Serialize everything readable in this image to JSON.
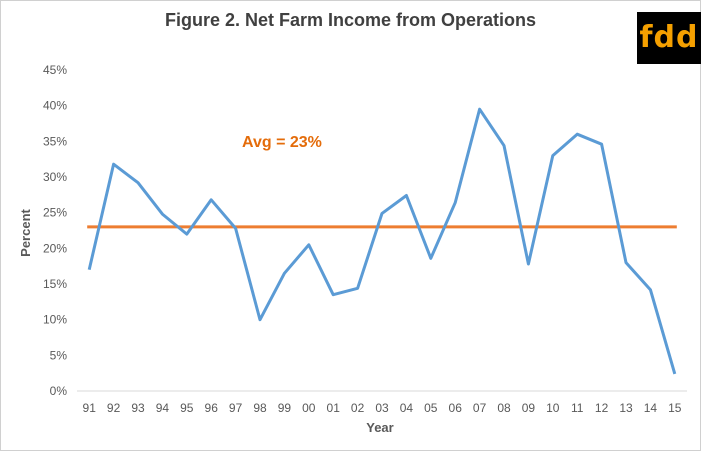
{
  "chart_data": {
    "type": "line",
    "title": "Figure 2. Net Farm Income from Operations",
    "xlabel": "Year",
    "ylabel": "Percent",
    "categories": [
      "91",
      "92",
      "93",
      "94",
      "95",
      "96",
      "97",
      "98",
      "99",
      "00",
      "01",
      "02",
      "03",
      "04",
      "05",
      "06",
      "07",
      "08",
      "09",
      "10",
      "11",
      "12",
      "13",
      "14",
      "15"
    ],
    "series": [
      {
        "values": [
          17,
          31.8,
          29.2,
          24.8,
          22,
          26.8,
          22.8,
          10,
          16.5,
          20.5,
          13.5,
          14.4,
          24.9,
          27.4,
          18.6,
          26.4,
          39.5,
          34.4,
          17.8,
          33,
          36,
          34.6,
          18,
          14.2,
          2.4
        ],
        "color": "#5b9bd5"
      }
    ],
    "reference_line": {
      "value": 23,
      "label": "Avg = 23%",
      "color": "#ed7d31"
    },
    "ylim": [
      0,
      45
    ],
    "yticks": [
      "0%",
      "5%",
      "10%",
      "15%",
      "20%",
      "25%",
      "30%",
      "35%",
      "40%",
      "45%"
    ],
    "grid": false,
    "legend": "none"
  },
  "logo": {
    "text": "fdd",
    "background": "#000000",
    "color": "#f5a000"
  }
}
